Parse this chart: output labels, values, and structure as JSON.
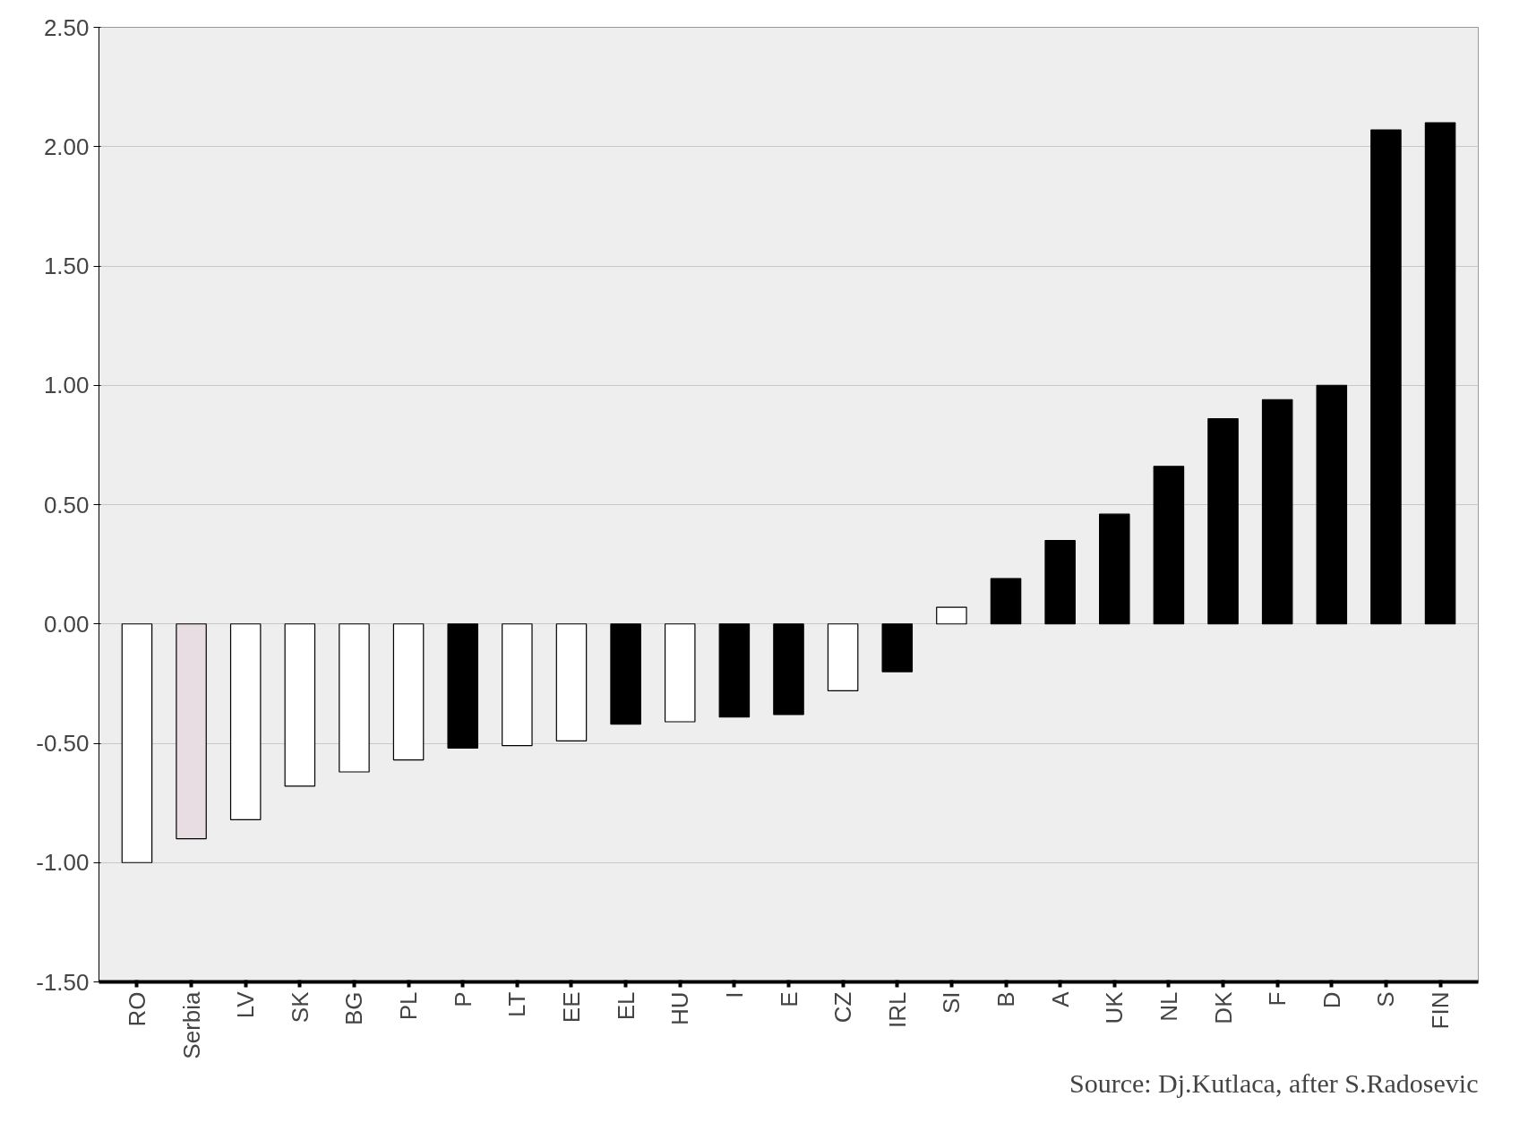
{
  "chart_data": {
    "type": "bar",
    "categories": [
      "RO",
      "Serbia",
      "LV",
      "SK",
      "BG",
      "PL",
      "P",
      "LT",
      "EE",
      "EL",
      "HU",
      "I",
      "E",
      "CZ",
      "IRL",
      "SI",
      "B",
      "A",
      "UK",
      "NL",
      "DK",
      "F",
      "D",
      "S",
      "FIN"
    ],
    "values": [
      -1.0,
      -0.9,
      -0.82,
      -0.68,
      -0.62,
      -0.57,
      -0.52,
      -0.51,
      -0.49,
      -0.42,
      -0.41,
      -0.39,
      -0.38,
      -0.28,
      -0.2,
      0.07,
      0.19,
      0.35,
      0.46,
      0.66,
      0.86,
      0.94,
      1.0,
      2.07,
      2.1
    ],
    "colors": [
      "#ffffff",
      "#e8dde2",
      "#ffffff",
      "#ffffff",
      "#ffffff",
      "#ffffff",
      "#000000",
      "#ffffff",
      "#ffffff",
      "#000000",
      "#ffffff",
      "#000000",
      "#000000",
      "#ffffff",
      "#000000",
      "#ffffff",
      "#000000",
      "#000000",
      "#000000",
      "#000000",
      "#000000",
      "#000000",
      "#000000",
      "#000000",
      "#000000"
    ],
    "ylim": [
      -1.5,
      2.5
    ],
    "yticks": [
      {
        "value": -1.5,
        "label": "-1.50"
      },
      {
        "value": -1.0,
        "label": "-1.00"
      },
      {
        "value": -0.5,
        "label": "-0.50"
      },
      {
        "value": 0,
        "label": "0.00"
      },
      {
        "value": 0.5,
        "label": "0.50"
      },
      {
        "value": 1.0,
        "label": "1.00"
      },
      {
        "value": 1.5,
        "label": "1.50"
      },
      {
        "value": 2.0,
        "label": "2.00"
      },
      {
        "value": 2.5,
        "label": "2.50"
      }
    ],
    "grid": "y",
    "annotations": [
      "Source: Dj.Kutlaca, after S.Radosevic"
    ]
  }
}
